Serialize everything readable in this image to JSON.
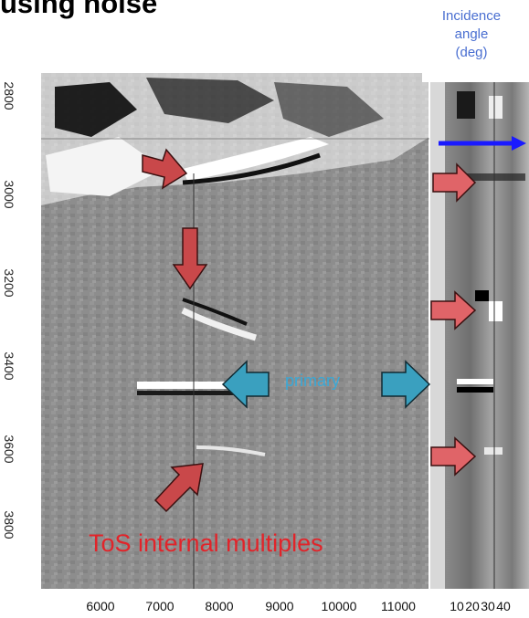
{
  "title": "using noise",
  "angle_panel": {
    "title_lines": [
      "Incidence",
      "angle",
      "(deg)"
    ],
    "x_ticks": [
      "10",
      "20",
      "30",
      "40"
    ]
  },
  "depth_axis": {
    "ticks": [
      "2800",
      "3000",
      "3200",
      "3400",
      "3600",
      "3800"
    ]
  },
  "offset_axis": {
    "ticks": [
      "6000",
      "7000",
      "8000",
      "9000",
      "10000",
      "11000"
    ]
  },
  "annotations": {
    "primary": "primary",
    "multiples": "ToS internal multiples"
  },
  "colors": {
    "red_arrow": "#c9484a",
    "blue_arrow": "#3aa0bf",
    "marker_arrow": "#1a1aff",
    "title_blue": "#4a6fd1",
    "label_red": "#e2242a",
    "label_cyan": "#3aa8d6"
  }
}
